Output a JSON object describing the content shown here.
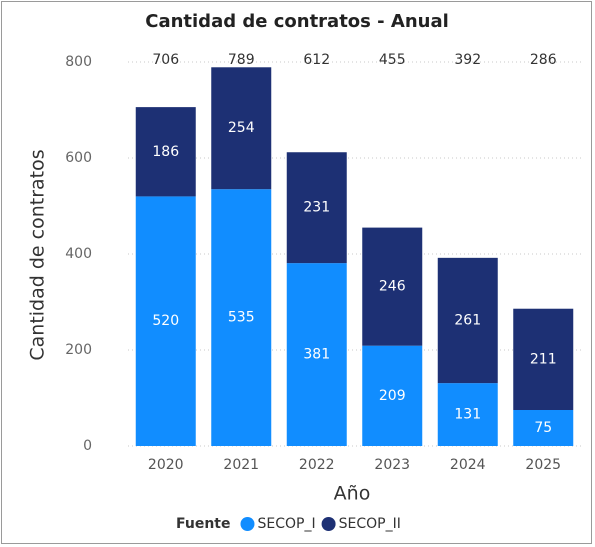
{
  "chart_data": {
    "type": "stacked_bar",
    "title": "Cantidad de contratos - Anual",
    "x_label": "Año",
    "y_label": "Cantidad de contratos",
    "categories": [
      "2020",
      "2021",
      "2022",
      "2023",
      "2024",
      "2025"
    ],
    "series": [
      {
        "name": "SECOP_I",
        "color": "#118dff",
        "values": [
          520,
          535,
          381,
          209,
          131,
          75
        ]
      },
      {
        "name": "SECOP_II",
        "color": "#1d3074",
        "values": [
          186,
          254,
          231,
          246,
          261,
          211
        ]
      }
    ],
    "totals": [
      706,
      789,
      612,
      455,
      392,
      286
    ],
    "legend_title": "Fuente",
    "ylim": [
      0,
      800
    ],
    "yticks": [
      0,
      200,
      400,
      600,
      800
    ],
    "grid": true
  }
}
